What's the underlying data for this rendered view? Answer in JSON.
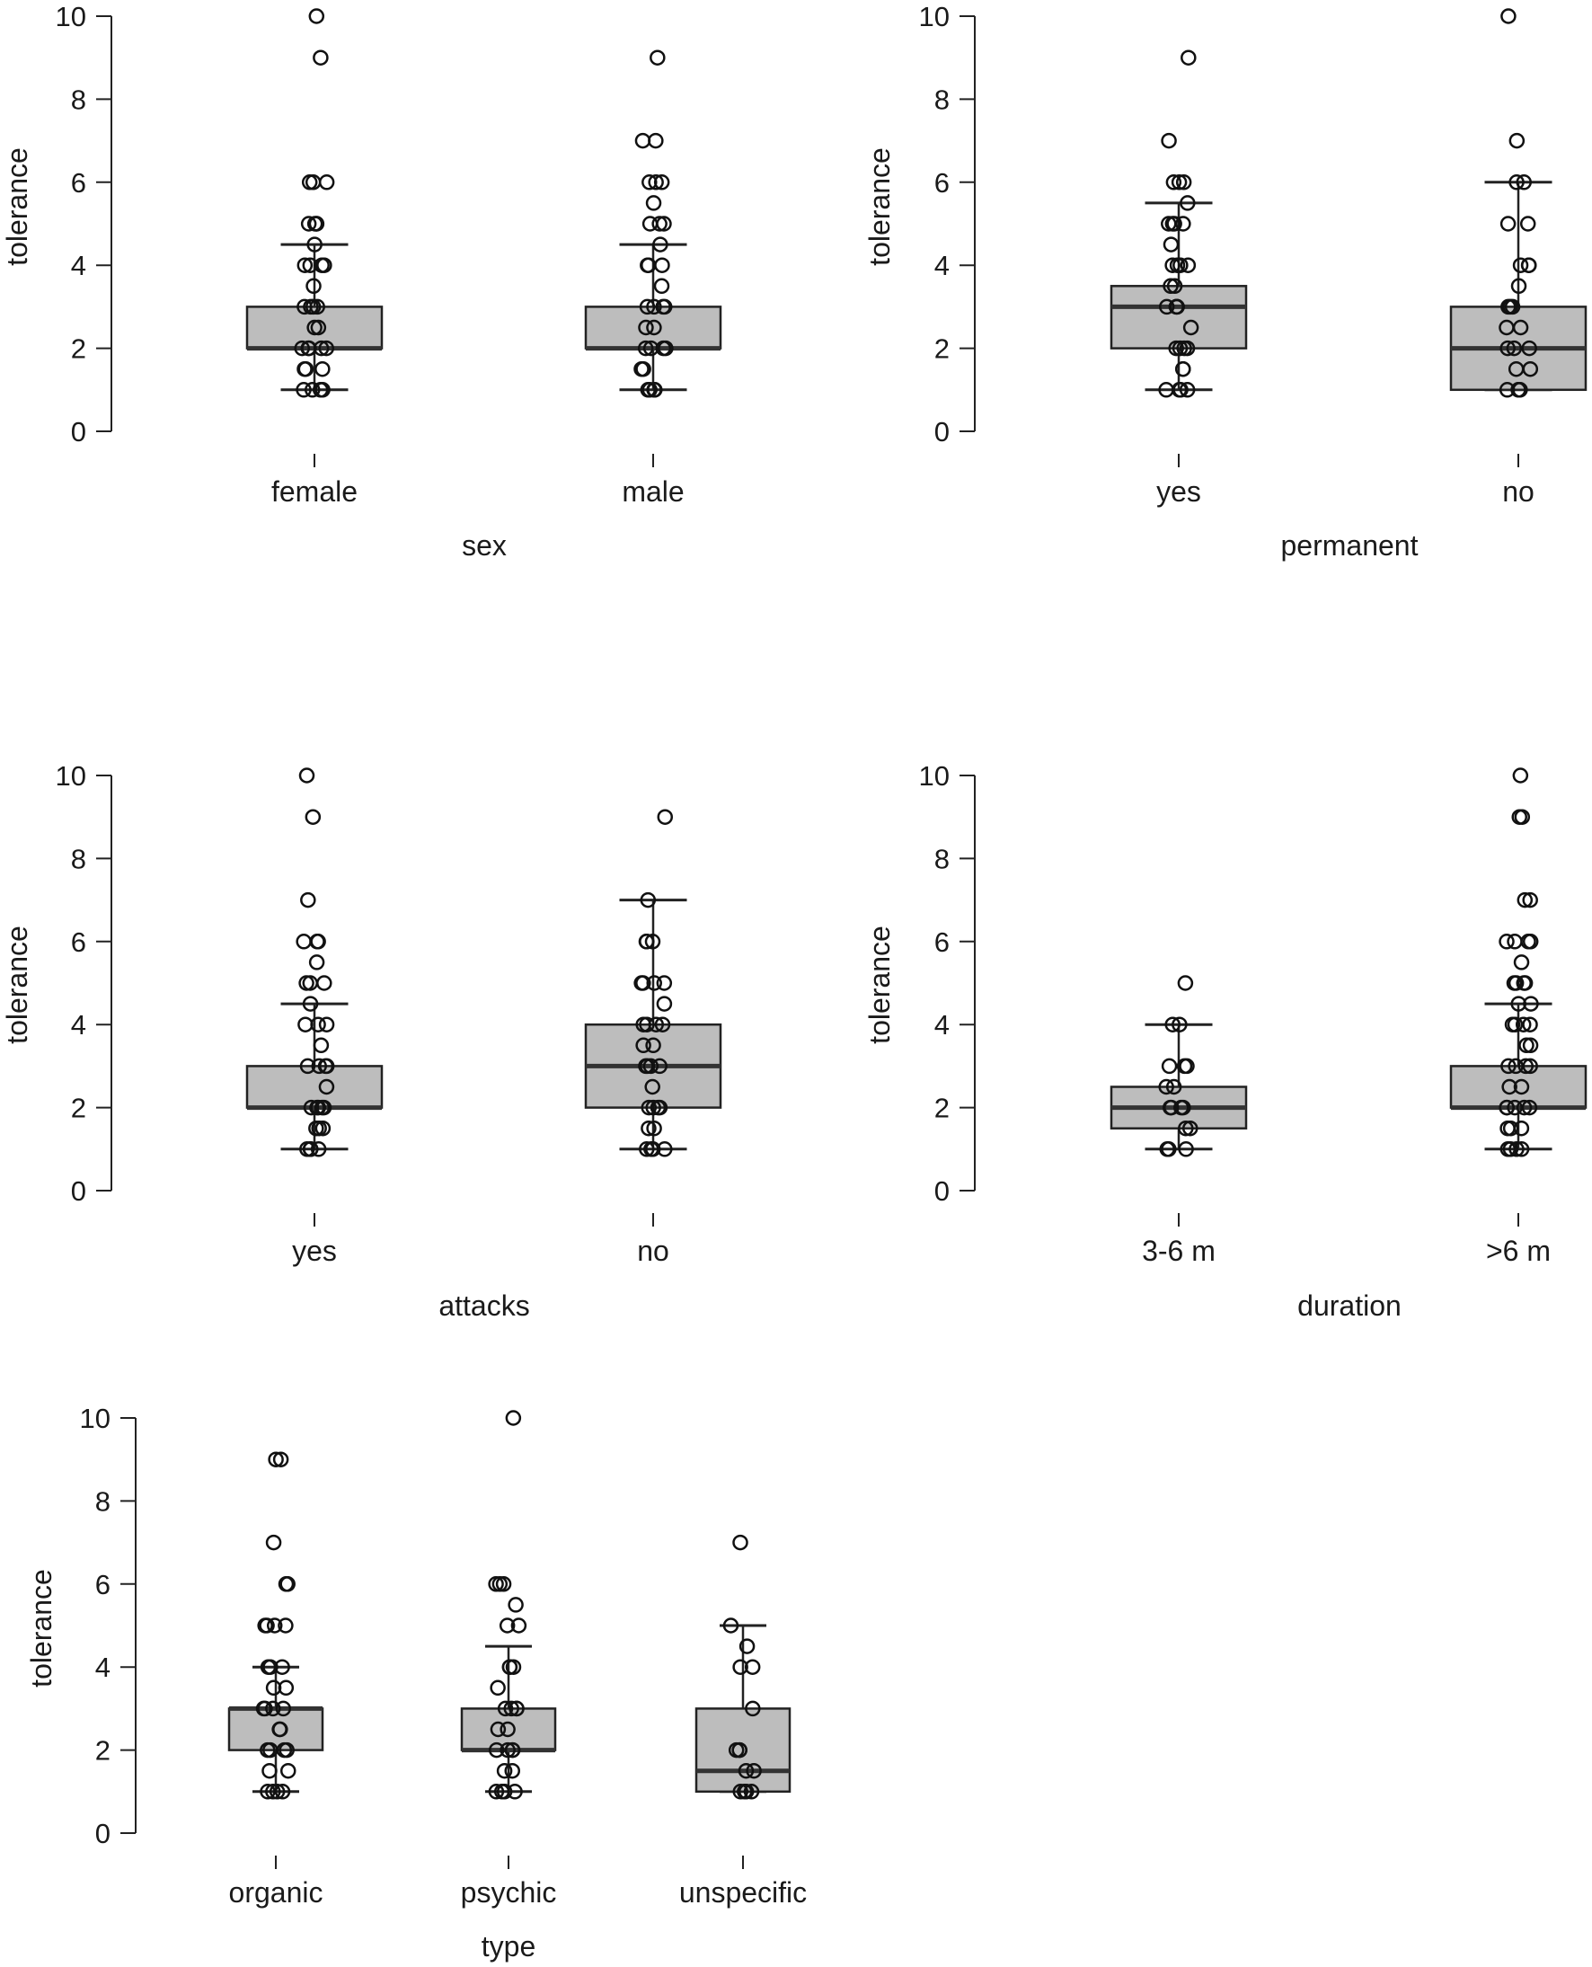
{
  "figure_title": "",
  "chart_data": [
    {
      "type": "boxplot",
      "xlabel": "sex",
      "ylabel": "tolerance",
      "ylim": [
        0,
        10
      ],
      "yticks": [
        "0",
        "2",
        "4",
        "6",
        "8",
        "10"
      ],
      "categories": [
        "female",
        "male"
      ],
      "boxes": [
        {
          "q1": 2,
          "median": 2,
          "q3": 3,
          "whisker_low": 1,
          "whisker_high": 4.5,
          "points": [
            1,
            1,
            1,
            1,
            1.5,
            1.5,
            1.5,
            2,
            2,
            2,
            2,
            2,
            2.5,
            2.5,
            3,
            3,
            3,
            3,
            3.5,
            4,
            4,
            4,
            4,
            4.5,
            5,
            5,
            5,
            5,
            6,
            6,
            6,
            9,
            10
          ]
        },
        {
          "q1": 2,
          "median": 2,
          "q3": 3,
          "whisker_low": 1,
          "whisker_high": 4.5,
          "points": [
            1,
            1,
            1,
            1,
            1.5,
            1.5,
            2,
            2,
            2,
            2,
            2.5,
            2.5,
            3,
            3,
            3,
            3,
            3.5,
            4,
            4,
            4,
            4.5,
            5,
            5,
            5,
            5.5,
            6,
            6,
            6,
            7,
            7,
            9
          ]
        }
      ]
    },
    {
      "type": "boxplot",
      "xlabel": "permanent",
      "ylabel": "tolerance",
      "ylim": [
        0,
        10
      ],
      "yticks": [
        "0",
        "2",
        "4",
        "6",
        "8",
        "10"
      ],
      "categories": [
        "yes",
        "no"
      ],
      "boxes": [
        {
          "q1": 2,
          "median": 3,
          "q3": 3.5,
          "whisker_low": 1,
          "whisker_high": 5.5,
          "points": [
            1,
            1,
            1,
            1,
            1.5,
            1.5,
            2,
            2,
            2,
            2,
            2.5,
            3,
            3,
            3,
            3,
            3.5,
            3.5,
            4,
            4,
            4,
            4,
            4.5,
            5,
            5,
            5,
            5,
            5.5,
            6,
            6,
            6,
            7,
            9
          ]
        },
        {
          "q1": 1,
          "median": 2,
          "q3": 3,
          "whisker_low": 1,
          "whisker_high": 6,
          "points": [
            1,
            1,
            1,
            1,
            1.5,
            1.5,
            2,
            2,
            2,
            2.5,
            2.5,
            3,
            3,
            3,
            3.5,
            4,
            4,
            4,
            5,
            5,
            6,
            6,
            7,
            10
          ]
        }
      ]
    },
    {
      "type": "boxplot",
      "xlabel": "attacks",
      "ylabel": "tolerance",
      "ylim": [
        0,
        10
      ],
      "yticks": [
        "0",
        "2",
        "4",
        "6",
        "8",
        "10"
      ],
      "categories": [
        "yes",
        "no"
      ],
      "boxes": [
        {
          "q1": 2,
          "median": 2,
          "q3": 3,
          "whisker_low": 1,
          "whisker_high": 4.5,
          "points": [
            1,
            1,
            1,
            1,
            1.5,
            1.5,
            1.5,
            2,
            2,
            2,
            2,
            2,
            2.5,
            3,
            3,
            3,
            3,
            3.5,
            4,
            4,
            4,
            4.5,
            5,
            5,
            5,
            5.5,
            6,
            6,
            6,
            7,
            9,
            10
          ]
        },
        {
          "q1": 2,
          "median": 3,
          "q3": 4,
          "whisker_low": 1,
          "whisker_high": 7,
          "points": [
            1,
            1,
            1,
            1,
            1.5,
            1.5,
            2,
            2,
            2,
            2,
            2.5,
            3,
            3,
            3,
            3,
            3.5,
            3.5,
            4,
            4,
            4,
            4,
            4.5,
            5,
            5,
            5,
            5,
            6,
            6,
            6,
            7,
            9
          ]
        }
      ]
    },
    {
      "type": "boxplot",
      "xlabel": "duration",
      "ylabel": "tolerance",
      "ylim": [
        0,
        10
      ],
      "yticks": [
        "0",
        "2",
        "4",
        "6",
        "8",
        "10"
      ],
      "categories": [
        "3-6 m",
        ">6 m"
      ],
      "boxes": [
        {
          "q1": 1.5,
          "median": 2,
          "q3": 2.5,
          "whisker_low": 1,
          "whisker_high": 4,
          "points": [
            1,
            1,
            1,
            1.5,
            1.5,
            2,
            2,
            2,
            2,
            2.5,
            2.5,
            3,
            3,
            3,
            4,
            4,
            5
          ]
        },
        {
          "q1": 2,
          "median": 2,
          "q3": 3,
          "whisker_low": 1,
          "whisker_high": 4.5,
          "points": [
            1,
            1,
            1,
            1,
            1.5,
            1.5,
            1.5,
            2,
            2,
            2,
            2,
            2,
            2.5,
            2.5,
            3,
            3,
            3,
            3,
            3.5,
            3.5,
            4,
            4,
            4,
            4,
            4.5,
            4.5,
            5,
            5,
            5,
            5,
            5.5,
            6,
            6,
            6,
            6,
            7,
            7,
            9,
            9,
            10
          ]
        }
      ]
    },
    {
      "type": "boxplot",
      "xlabel": "type",
      "ylabel": "tolerance",
      "ylim": [
        0,
        10
      ],
      "yticks": [
        "0",
        "2",
        "4",
        "6",
        "8",
        "10"
      ],
      "categories": [
        "organic",
        "psychic",
        "unspecific"
      ],
      "boxes": [
        {
          "q1": 2,
          "median": 3,
          "q3": 3,
          "whisker_low": 1,
          "whisker_high": 4,
          "points": [
            1,
            1,
            1,
            1,
            1.5,
            1.5,
            2,
            2,
            2,
            2,
            2.5,
            2.5,
            3,
            3,
            3,
            3,
            3.5,
            3.5,
            4,
            4,
            4,
            5,
            5,
            5,
            5,
            6,
            6,
            6,
            7,
            9,
            9
          ]
        },
        {
          "q1": 2,
          "median": 2,
          "q3": 3,
          "whisker_low": 1,
          "whisker_high": 4.5,
          "points": [
            1,
            1,
            1,
            1,
            1.5,
            1.5,
            2,
            2,
            2,
            2,
            2.5,
            2.5,
            3,
            3,
            3,
            3,
            3.5,
            4,
            4,
            4,
            5,
            5,
            5.5,
            6,
            6,
            6,
            10
          ]
        },
        {
          "q1": 1,
          "median": 1.5,
          "q3": 3,
          "whisker_low": 1,
          "whisker_high": 5,
          "points": [
            1,
            1,
            1,
            1,
            1.5,
            1.5,
            2,
            2,
            2,
            3,
            4,
            4,
            4.5,
            5,
            7
          ]
        }
      ]
    }
  ]
}
